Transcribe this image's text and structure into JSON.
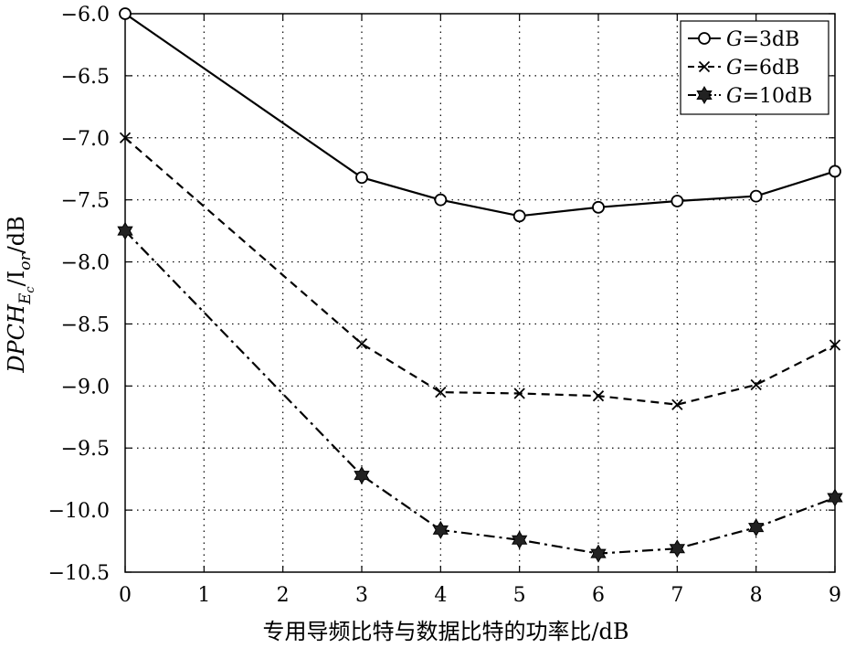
{
  "chart_data": {
    "type": "line",
    "title": "",
    "xlabel": "专用导频比特与数据比特的功率比/dB",
    "ylabel": {
      "prefix": "DPCH",
      "sub": "E",
      "subsub": "c",
      "mid": "/I",
      "sub2": "or",
      "suffix": "/dB"
    },
    "xlim": [
      0,
      9
    ],
    "ylim": [
      -10.5,
      -6.0
    ],
    "x_ticks": [
      "0",
      "1",
      "2",
      "3",
      "4",
      "5",
      "6",
      "7",
      "8",
      "9"
    ],
    "y_ticks": [
      "−6.0",
      "−6.5",
      "−7.0",
      "−7.5",
      "−8.0",
      "−8.5",
      "−9.0",
      "−9.5",
      "−10.0",
      "−10.5"
    ],
    "y_tick_values": [
      -6.0,
      -6.5,
      -7.0,
      -7.5,
      -8.0,
      -8.5,
      -9.0,
      -9.5,
      -10.0,
      -10.5
    ],
    "grid": true,
    "grid_style": "dotted",
    "legend_position": "top-right",
    "x": [
      0,
      3,
      4,
      5,
      6,
      7,
      8,
      9
    ],
    "series": [
      {
        "name_italic": "G",
        "name_rest": "=3dB",
        "values": [
          -6.0,
          -7.32,
          -7.5,
          -7.63,
          -7.56,
          -7.51,
          -7.47,
          -7.27
        ],
        "marker": "circle",
        "dash": "solid",
        "color": "#000000"
      },
      {
        "name_italic": "G",
        "name_rest": "=6dB",
        "values": [
          -7.0,
          -8.66,
          -9.05,
          -9.06,
          -9.08,
          -9.15,
          -8.99,
          -8.67
        ],
        "marker": "x",
        "dash": "dashed",
        "color": "#000000"
      },
      {
        "name_italic": "G",
        "name_rest": "=10dB",
        "values": [
          -7.75,
          -9.72,
          -10.16,
          -10.24,
          -10.35,
          -10.31,
          -10.14,
          -9.9
        ],
        "marker": "hexagram",
        "dash": "dashdot",
        "color": "#000000"
      }
    ]
  }
}
